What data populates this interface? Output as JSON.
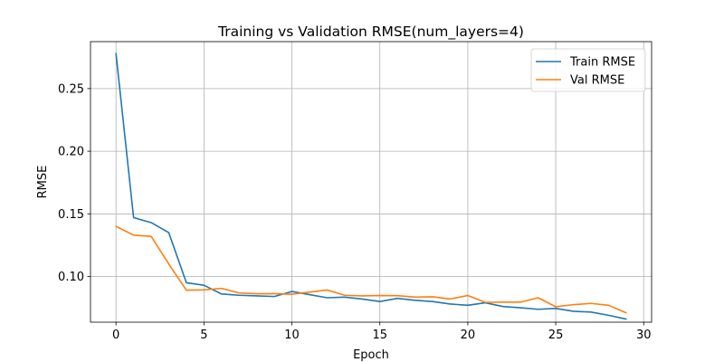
{
  "chart_data": {
    "type": "line",
    "title": "Training vs Validation RMSE(num_layers=4)",
    "xlabel": "Epoch",
    "ylabel": "RMSE",
    "xlim": [
      -1.45,
      30.45
    ],
    "ylim": [
      0.0635,
      0.2875
    ],
    "xticks": [
      0,
      5,
      10,
      15,
      20,
      25,
      30
    ],
    "yticks": [
      0.1,
      0.15,
      0.2,
      0.25
    ],
    "ytick_labels": [
      "0.10",
      "0.15",
      "0.20",
      "0.25"
    ],
    "grid": true,
    "legend_position": "top-right",
    "x": [
      0,
      1,
      2,
      3,
      4,
      5,
      6,
      7,
      8,
      9,
      10,
      11,
      12,
      13,
      14,
      15,
      16,
      17,
      18,
      19,
      20,
      21,
      22,
      23,
      24,
      25,
      26,
      27,
      28,
      29
    ],
    "series": [
      {
        "name": "Train RMSE",
        "color": "#1f77b4",
        "values": [
          0.278,
          0.147,
          0.143,
          0.135,
          0.095,
          0.093,
          0.086,
          0.085,
          0.0845,
          0.084,
          0.088,
          0.0855,
          0.083,
          0.0835,
          0.082,
          0.08,
          0.0825,
          0.081,
          0.08,
          0.078,
          0.077,
          0.079,
          0.076,
          0.075,
          0.0738,
          0.0745,
          0.0722,
          0.0716,
          0.069,
          0.066
        ]
      },
      {
        "name": "Val RMSE",
        "color": "#ff7f0e",
        "values": [
          0.14,
          0.133,
          0.132,
          0.11,
          0.089,
          0.0893,
          0.0905,
          0.0868,
          0.0862,
          0.0863,
          0.0858,
          0.0875,
          0.0892,
          0.085,
          0.0845,
          0.0848,
          0.0847,
          0.0835,
          0.0838,
          0.082,
          0.0848,
          0.0793,
          0.0795,
          0.0795,
          0.083,
          0.0758,
          0.0775,
          0.0785,
          0.077,
          0.071
        ]
      }
    ]
  }
}
